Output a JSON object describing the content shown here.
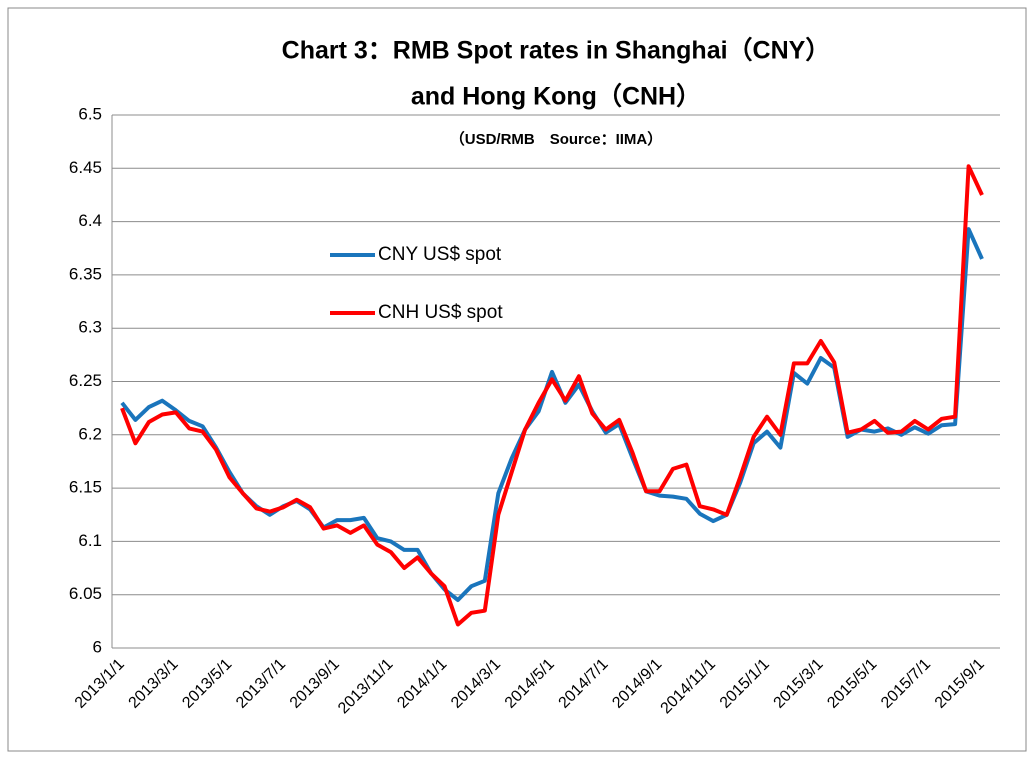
{
  "chart_data": {
    "type": "line",
    "title": [
      "Chart 3：RMB Spot rates in Shanghai（CNY）",
      "and Hong Kong（CNH）"
    ],
    "subtitle": "（USD/RMB　Source：IIMA）",
    "categories": [
      "2013/1/1",
      null,
      null,
      null,
      "2013/3/1",
      null,
      null,
      null,
      "2013/5/1",
      null,
      null,
      null,
      "2013/7/1",
      null,
      null,
      null,
      "2013/9/1",
      null,
      null,
      null,
      "2013/11/1",
      null,
      null,
      null,
      "2014/1/1",
      null,
      null,
      null,
      "2014/3/1",
      null,
      null,
      null,
      "2014/5/1",
      null,
      null,
      null,
      "2014/7/1",
      null,
      null,
      null,
      "2014/9/1",
      null,
      null,
      null,
      "2014/11/1",
      null,
      null,
      null,
      "2015/1/1",
      null,
      null,
      null,
      "2015/3/1",
      null,
      null,
      null,
      "2015/5/1",
      null,
      null,
      null,
      "2015/7/1",
      null,
      null,
      null,
      "2015/9/1"
    ],
    "series": [
      {
        "name": "CNY US$ spot",
        "color": "#1a75bc",
        "values": [
          6.23,
          6.214,
          6.226,
          6.232,
          6.223,
          6.213,
          6.208,
          6.188,
          6.165,
          6.145,
          6.133,
          6.125,
          6.133,
          6.138,
          6.13,
          6.113,
          6.12,
          6.12,
          6.122,
          6.103,
          6.1,
          6.092,
          6.092,
          6.07,
          6.055,
          6.045,
          6.058,
          6.063,
          6.145,
          6.178,
          6.205,
          6.222,
          6.259,
          6.23,
          6.247,
          6.222,
          6.202,
          6.21,
          6.178,
          6.147,
          6.143,
          6.142,
          6.14,
          6.126,
          6.119,
          6.125,
          6.155,
          6.192,
          6.203,
          6.188,
          6.258,
          6.248,
          6.272,
          6.263,
          6.198,
          6.205,
          6.203,
          6.206,
          6.2,
          6.207,
          6.201,
          6.209,
          6.21,
          6.393,
          6.365
        ]
      },
      {
        "name": "CNH US$ spot",
        "color": "#ff0000",
        "values": [
          6.225,
          6.192,
          6.212,
          6.219,
          6.221,
          6.206,
          6.203,
          6.186,
          6.16,
          6.145,
          6.131,
          6.128,
          6.132,
          6.139,
          6.132,
          6.112,
          6.115,
          6.108,
          6.115,
          6.097,
          6.09,
          6.075,
          6.085,
          6.07,
          6.058,
          6.022,
          6.033,
          6.035,
          6.125,
          6.165,
          6.205,
          6.23,
          6.252,
          6.232,
          6.255,
          6.22,
          6.205,
          6.214,
          6.183,
          6.147,
          6.147,
          6.168,
          6.172,
          6.133,
          6.13,
          6.125,
          6.16,
          6.198,
          6.217,
          6.2,
          6.267,
          6.267,
          6.288,
          6.268,
          6.202,
          6.205,
          6.213,
          6.202,
          6.203,
          6.213,
          6.205,
          6.215,
          6.217,
          6.452,
          6.425
        ]
      }
    ],
    "ylim": [
      6,
      6.5
    ],
    "yticks": [
      6,
      6.05,
      6.1,
      6.15,
      6.2,
      6.25,
      6.3,
      6.35,
      6.4,
      6.45,
      6.5
    ],
    "grid": true,
    "legend": "inside"
  }
}
